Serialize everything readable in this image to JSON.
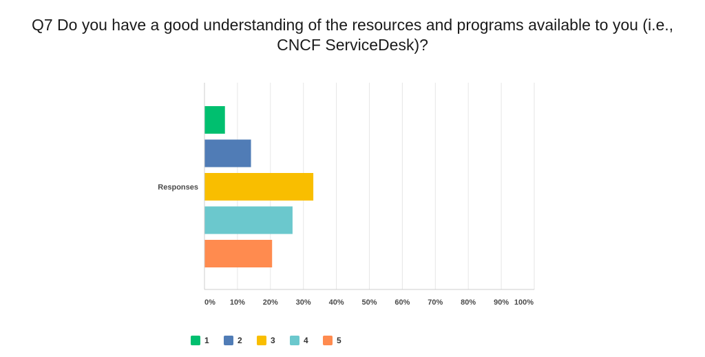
{
  "title_lines": [
    "Q7 Do you have a good understanding of the resources and programs available to you (i.e.,",
    "CNCF ServiceDesk)?"
  ],
  "chart_data": {
    "type": "bar",
    "orientation": "horizontal",
    "categories": [
      "Responses"
    ],
    "series": [
      {
        "name": "1",
        "values": [
          6.1
        ],
        "color": "#00bf6f"
      },
      {
        "name": "2",
        "values": [
          14.0
        ],
        "color": "#507cb6"
      },
      {
        "name": "3",
        "values": [
          32.9
        ],
        "color": "#f9be00"
      },
      {
        "name": "4",
        "values": [
          26.6
        ],
        "color": "#6bc8cd"
      },
      {
        "name": "5",
        "values": [
          20.4
        ],
        "color": "#ff8b4f"
      }
    ],
    "xlim": [
      0,
      100
    ],
    "x_ticks": [
      "0%",
      "10%",
      "20%",
      "30%",
      "40%",
      "50%",
      "60%",
      "70%",
      "80%",
      "90%",
      "100%"
    ],
    "grid": true,
    "legend": "bottom"
  }
}
